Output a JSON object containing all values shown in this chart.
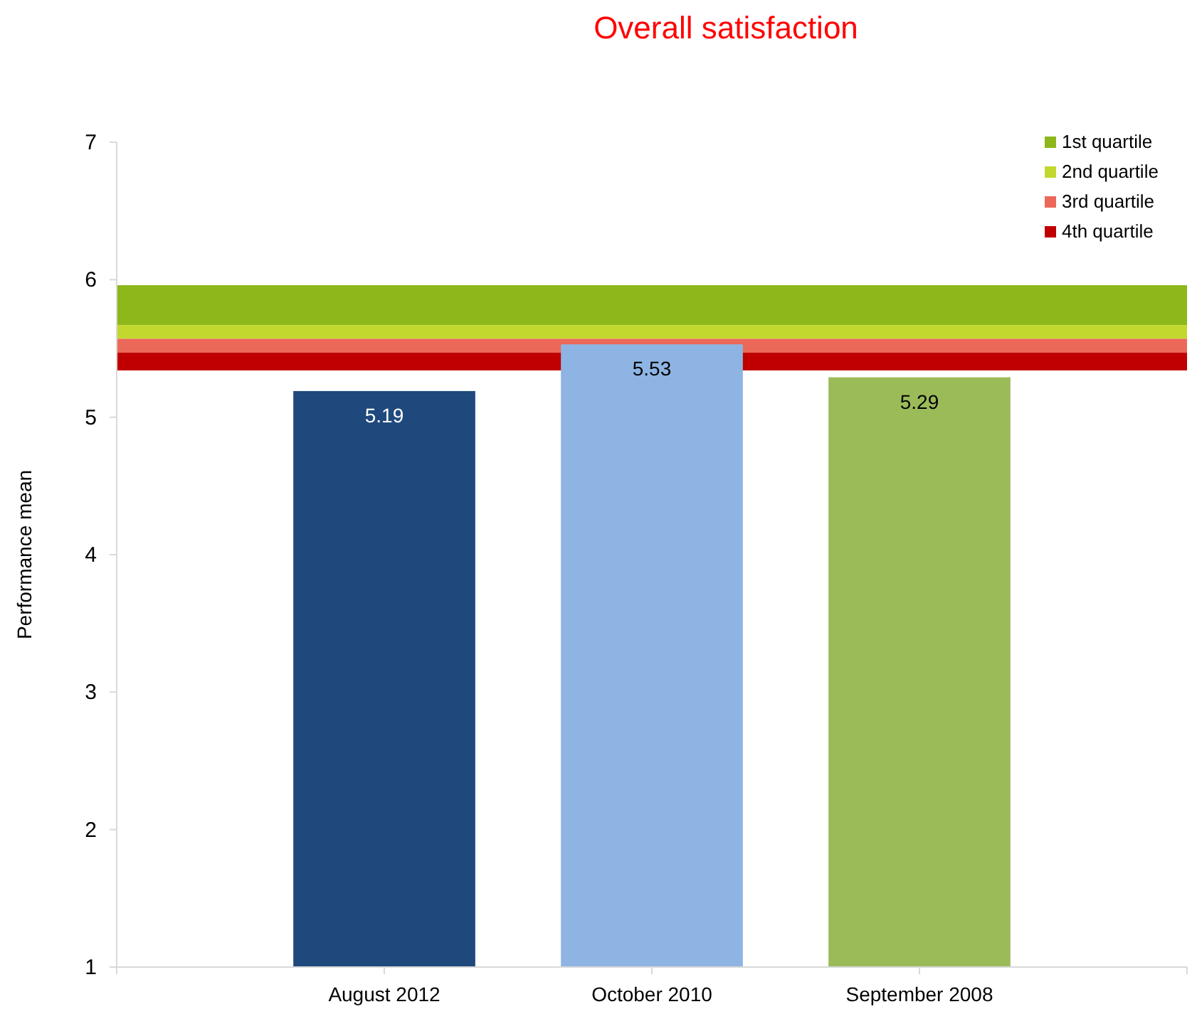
{
  "chart_data": {
    "type": "bar",
    "title": "Overall satisfaction",
    "ylabel": "Performance mean",
    "categories": [
      "August 2012",
      "October 2010",
      "September 2008"
    ],
    "values": [
      5.19,
      5.53,
      5.29
    ],
    "colors": [
      "#1f497d",
      "#8eb4e3",
      "#9bbb59"
    ],
    "ylim": [
      1,
      7
    ],
    "yticks": [
      1,
      2,
      3,
      4,
      5,
      6,
      7
    ],
    "bands": [
      {
        "axis": "y",
        "from": 5.67,
        "to": 5.96,
        "label": "1st quartile",
        "color": "#8db71a"
      },
      {
        "axis": "y",
        "from": 5.57,
        "to": 5.67,
        "label": "2nd quartile",
        "color": "#c3d82e"
      },
      {
        "axis": "y",
        "from": 5.47,
        "to": 5.57,
        "label": "3rd quartile",
        "color": "#ec6858"
      },
      {
        "axis": "y",
        "from": 5.34,
        "to": 5.47,
        "label": "4th quartile",
        "color": "#c00000"
      }
    ],
    "data_labels": true,
    "legend": "top right",
    "grid": false
  }
}
